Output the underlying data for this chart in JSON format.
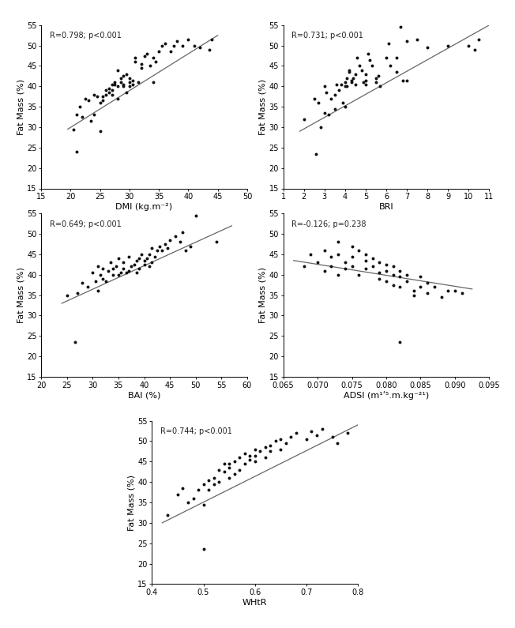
{
  "plots": [
    {
      "xlabel": "DMI (kg.m⁻²)",
      "ylabel": "Fat Mass (%)",
      "annotation": "R=0.798; p<0.001",
      "xlim": [
        15,
        50
      ],
      "ylim": [
        15,
        55
      ],
      "xticks": [
        15,
        20,
        25,
        30,
        35,
        40,
        45,
        50
      ],
      "yticks": [
        15,
        20,
        25,
        30,
        35,
        40,
        45,
        50,
        55
      ],
      "x": [
        20.5,
        21.0,
        21.5,
        22.0,
        22.5,
        23.0,
        23.5,
        24.0,
        24.0,
        24.5,
        25.0,
        25.0,
        25.5,
        25.5,
        26.0,
        26.0,
        26.5,
        26.5,
        27.0,
        27.0,
        27.0,
        27.5,
        27.5,
        28.0,
        28.0,
        28.0,
        28.5,
        28.5,
        29.0,
        29.0,
        29.0,
        29.5,
        29.5,
        30.0,
        30.0,
        30.0,
        30.5,
        30.5,
        31.0,
        31.0,
        31.5,
        32.0,
        32.0,
        32.5,
        33.0,
        33.5,
        34.0,
        34.0,
        34.5,
        35.0,
        35.5,
        36.0,
        37.0,
        37.5,
        38.0,
        39.0,
        40.0,
        41.0,
        42.0,
        43.5,
        44.0,
        21.0
      ],
      "y": [
        29.5,
        33.0,
        35.0,
        32.5,
        37.0,
        36.5,
        31.5,
        38.0,
        33.0,
        37.5,
        36.0,
        29.0,
        37.5,
        36.5,
        39.0,
        38.0,
        38.5,
        39.5,
        40.5,
        39.0,
        38.0,
        40.5,
        41.0,
        44.0,
        40.0,
        37.0,
        41.0,
        42.0,
        40.5,
        42.5,
        40.0,
        43.0,
        38.5,
        41.0,
        40.0,
        42.0,
        41.5,
        40.5,
        47.0,
        46.0,
        41.0,
        44.5,
        45.5,
        47.5,
        48.0,
        45.0,
        47.0,
        41.0,
        46.0,
        48.5,
        50.0,
        50.5,
        48.5,
        50.0,
        51.0,
        50.0,
        51.5,
        50.0,
        49.5,
        49.0,
        51.5,
        24.0
      ],
      "line_x": [
        19.5,
        45.0
      ],
      "line_y": [
        29.5,
        52.5
      ]
    },
    {
      "xlabel": "BRI",
      "ylabel": "Fat Mass (%)",
      "annotation": "R=0.731; p<0.001",
      "xlim": [
        1,
        11
      ],
      "ylim": [
        15,
        55
      ],
      "xticks": [
        1,
        2,
        3,
        4,
        5,
        6,
        7,
        8,
        9,
        10,
        11
      ],
      "yticks": [
        15,
        20,
        25,
        30,
        35,
        40,
        45,
        50,
        55
      ],
      "x": [
        2.0,
        2.5,
        2.7,
        2.8,
        3.0,
        3.0,
        3.1,
        3.2,
        3.3,
        3.5,
        3.5,
        3.6,
        3.7,
        3.8,
        3.9,
        4.0,
        4.0,
        4.0,
        4.1,
        4.1,
        4.2,
        4.2,
        4.3,
        4.3,
        4.4,
        4.5,
        4.5,
        4.6,
        4.7,
        4.8,
        4.9,
        5.0,
        5.0,
        5.0,
        5.1,
        5.2,
        5.3,
        5.5,
        5.5,
        5.6,
        5.7,
        6.0,
        6.1,
        6.2,
        6.5,
        6.5,
        6.7,
        6.8,
        7.0,
        7.0,
        7.5,
        8.0,
        9.0,
        10.0,
        10.3,
        10.5,
        2.6
      ],
      "y": [
        32.0,
        37.0,
        36.0,
        30.0,
        40.0,
        33.5,
        38.5,
        33.0,
        37.0,
        38.0,
        34.5,
        40.5,
        39.0,
        40.5,
        36.0,
        40.0,
        41.0,
        35.0,
        42.0,
        40.0,
        43.5,
        44.0,
        41.0,
        41.5,
        42.0,
        43.0,
        40.5,
        47.0,
        45.0,
        44.0,
        41.0,
        40.5,
        41.5,
        43.0,
        48.0,
        46.5,
        45.0,
        42.0,
        41.0,
        42.5,
        40.0,
        47.0,
        50.5,
        45.0,
        47.0,
        43.5,
        54.5,
        41.5,
        51.0,
        41.5,
        51.5,
        49.5,
        50.0,
        50.0,
        49.0,
        51.5,
        23.5
      ],
      "line_x": [
        1.8,
        11.0
      ],
      "line_y": [
        29.0,
        55.0
      ]
    },
    {
      "xlabel": "BAI (%)",
      "ylabel": "Fat Mass (%)",
      "annotation": "R=0.649; p<0.001",
      "xlim": [
        20,
        60
      ],
      "ylim": [
        15,
        55
      ],
      "xticks": [
        20,
        25,
        30,
        35,
        40,
        45,
        50,
        55,
        60
      ],
      "yticks": [
        15,
        20,
        25,
        30,
        35,
        40,
        45,
        50,
        55
      ],
      "x": [
        25.0,
        27.0,
        28.0,
        29.0,
        30.0,
        30.5,
        31.0,
        31.0,
        31.5,
        32.0,
        32.0,
        32.5,
        33.0,
        33.5,
        34.0,
        34.0,
        34.5,
        35.0,
        35.0,
        35.5,
        36.0,
        36.0,
        36.5,
        37.0,
        37.0,
        37.5,
        38.0,
        38.5,
        38.5,
        39.0,
        39.0,
        39.5,
        40.0,
        40.0,
        40.5,
        41.0,
        41.0,
        41.5,
        41.5,
        42.0,
        42.5,
        43.0,
        43.5,
        44.0,
        44.5,
        45.0,
        46.0,
        47.0,
        47.5,
        48.0,
        49.0,
        50.0,
        54.0,
        26.5
      ],
      "y": [
        35.0,
        35.5,
        38.0,
        37.0,
        40.5,
        38.5,
        42.0,
        36.0,
        40.0,
        41.5,
        39.0,
        38.5,
        41.0,
        43.0,
        40.0,
        41.5,
        42.0,
        44.0,
        40.0,
        40.5,
        41.5,
        43.0,
        40.5,
        41.0,
        44.5,
        42.0,
        42.5,
        40.5,
        43.5,
        41.5,
        44.0,
        45.0,
        42.5,
        43.5,
        44.0,
        45.0,
        42.0,
        46.5,
        43.0,
        44.5,
        46.0,
        47.0,
        46.0,
        47.5,
        46.5,
        48.5,
        49.5,
        48.0,
        50.5,
        46.0,
        47.0,
        54.5,
        48.0,
        23.5
      ],
      "line_x": [
        24.0,
        57.0
      ],
      "line_y": [
        33.0,
        52.0
      ]
    },
    {
      "xlabel": "ADSI (m¹ʹ⁵.m.kg⁻²¹)",
      "ylabel": "Fat Mass (%)",
      "annotation": "R=-0.126; p=0.238",
      "xlim": [
        0.065,
        0.095
      ],
      "ylim": [
        15,
        55
      ],
      "xticks": [
        0.065,
        0.07,
        0.075,
        0.08,
        0.085,
        0.09,
        0.095
      ],
      "xtick_labels": [
        "0.065",
        "0.070",
        "0.075",
        "0.080",
        "0.085",
        "0.090",
        "0.095"
      ],
      "yticks": [
        15,
        20,
        25,
        30,
        35,
        40,
        45,
        50,
        55
      ],
      "x": [
        0.068,
        0.069,
        0.07,
        0.071,
        0.071,
        0.072,
        0.072,
        0.073,
        0.073,
        0.073,
        0.074,
        0.074,
        0.075,
        0.075,
        0.075,
        0.076,
        0.076,
        0.077,
        0.077,
        0.077,
        0.078,
        0.078,
        0.079,
        0.079,
        0.079,
        0.08,
        0.08,
        0.08,
        0.081,
        0.081,
        0.081,
        0.082,
        0.082,
        0.082,
        0.083,
        0.083,
        0.084,
        0.084,
        0.085,
        0.085,
        0.086,
        0.086,
        0.087,
        0.088,
        0.089,
        0.09,
        0.091,
        0.082
      ],
      "y": [
        42.0,
        45.0,
        43.0,
        46.0,
        41.0,
        44.5,
        42.0,
        48.0,
        45.0,
        40.0,
        43.0,
        41.5,
        47.0,
        44.5,
        42.0,
        46.0,
        40.0,
        45.0,
        43.5,
        41.5,
        44.0,
        42.0,
        43.0,
        40.5,
        39.0,
        42.5,
        41.0,
        38.5,
        42.0,
        40.0,
        37.5,
        41.0,
        39.5,
        37.0,
        40.0,
        38.5,
        36.0,
        35.0,
        39.5,
        37.0,
        38.0,
        35.5,
        37.0,
        34.5,
        36.0,
        36.0,
        35.5,
        23.5
      ],
      "line_x": [
        0.0665,
        0.0925
      ],
      "line_y": [
        43.5,
        36.5
      ]
    },
    {
      "xlabel": "WHtR",
      "ylabel": "Fat Mass (%)",
      "annotation": "R=0.744; p<0.001",
      "xlim": [
        0.4,
        0.8
      ],
      "ylim": [
        15,
        55
      ],
      "xticks": [
        0.4,
        0.5,
        0.6,
        0.7,
        0.8
      ],
      "xtick_labels": [
        "0.4",
        "0.5",
        "0.6",
        "0.7",
        "0.8"
      ],
      "yticks": [
        15,
        20,
        25,
        30,
        35,
        40,
        45,
        50,
        55
      ],
      "x": [
        0.43,
        0.45,
        0.46,
        0.47,
        0.48,
        0.49,
        0.5,
        0.5,
        0.51,
        0.51,
        0.52,
        0.52,
        0.53,
        0.53,
        0.54,
        0.54,
        0.55,
        0.55,
        0.55,
        0.56,
        0.56,
        0.57,
        0.57,
        0.58,
        0.58,
        0.59,
        0.59,
        0.6,
        0.6,
        0.6,
        0.61,
        0.62,
        0.62,
        0.63,
        0.63,
        0.64,
        0.65,
        0.65,
        0.66,
        0.67,
        0.68,
        0.7,
        0.71,
        0.72,
        0.73,
        0.75,
        0.76,
        0.78,
        0.5
      ],
      "y": [
        32.0,
        37.0,
        38.5,
        35.0,
        36.0,
        38.0,
        39.5,
        34.5,
        40.5,
        38.0,
        41.0,
        39.5,
        43.0,
        40.0,
        44.5,
        42.5,
        41.0,
        43.5,
        44.5,
        45.0,
        42.0,
        43.0,
        46.0,
        44.5,
        47.0,
        45.5,
        46.5,
        45.0,
        48.0,
        46.5,
        47.5,
        46.0,
        48.5,
        49.0,
        47.5,
        50.0,
        48.0,
        50.5,
        49.5,
        51.0,
        52.0,
        50.5,
        52.5,
        51.5,
        53.0,
        51.0,
        49.5,
        52.0,
        23.5
      ],
      "line_x": [
        0.42,
        0.8
      ],
      "line_y": [
        30.0,
        54.0
      ]
    }
  ],
  "dot_color": "#111111",
  "line_color": "#666666",
  "dot_size": 8,
  "annotation_fontsize": 7,
  "axis_label_fontsize": 8,
  "tick_fontsize": 7
}
